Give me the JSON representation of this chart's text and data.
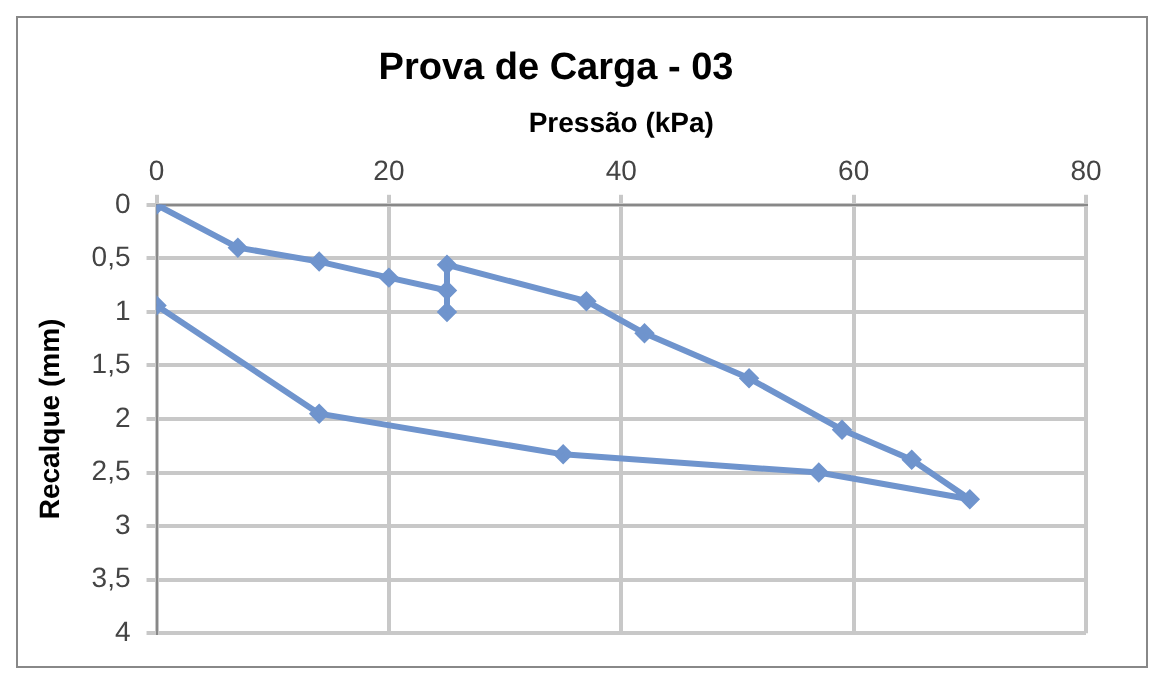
{
  "chart_data": {
    "type": "line",
    "title": "Prova de Carga - 03",
    "xlabel": "Pressão (kPa)",
    "ylabel": "Recalque (mm)",
    "series": [
      {
        "color": "#6f94cd",
        "x": [
          0,
          7,
          14,
          20,
          25,
          25,
          25,
          37,
          42,
          51,
          59,
          65,
          70,
          57,
          35,
          14,
          0
        ],
        "values": [
          0,
          0.4,
          0.53,
          0.68,
          0.8,
          1.0,
          0.56,
          0.9,
          1.2,
          1.62,
          2.1,
          2.38,
          2.75,
          2.5,
          2.33,
          1.95,
          0.94
        ]
      }
    ],
    "xlim": [
      0,
      80
    ],
    "xticks": [
      0,
      20,
      40,
      60,
      80
    ],
    "ylim": [
      4,
      0
    ],
    "yticks": [
      0,
      {
        "value": 0.5,
        "label": "0,5"
      },
      1,
      {
        "value": 1.5,
        "label": "1,5"
      },
      2,
      {
        "value": 2.5,
        "label": "2,5"
      },
      3,
      {
        "value": 3.5,
        "label": "3,5"
      },
      4
    ],
    "grid": true,
    "marker": "diamond",
    "line_style": "solid"
  }
}
